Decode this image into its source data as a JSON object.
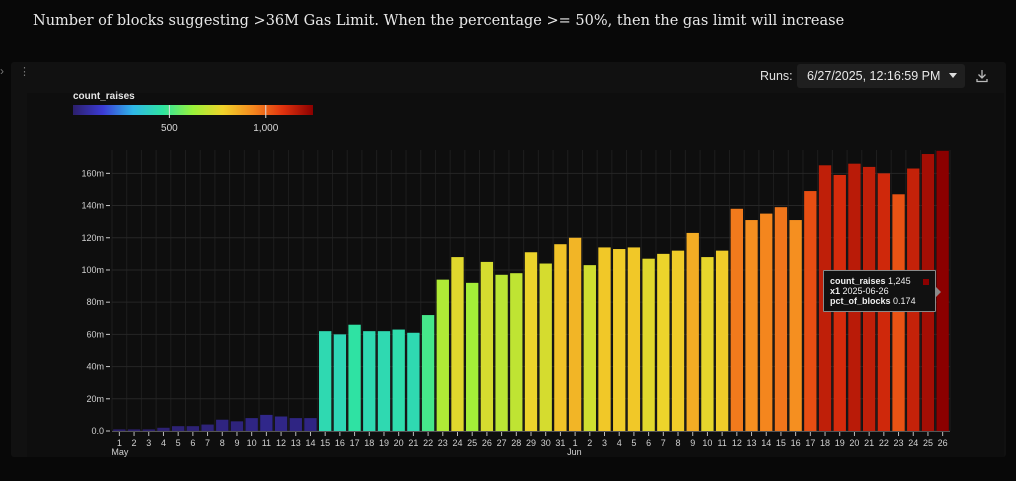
{
  "page": {
    "title": "Number of blocks suggesting >36M Gas Limit. When the percentage >= 50%, then the gas limit will increase"
  },
  "toolbar": {
    "runs_label": "Runs:",
    "run_selected": "6/27/2025, 12:16:59 PM",
    "download_icon": "download-icon",
    "drag_icon": "drag-handle-icon"
  },
  "legend": {
    "title": "count_raises",
    "ticks": [
      {
        "value": 500,
        "label": "500"
      },
      {
        "value": 1000,
        "label": "1,000"
      }
    ],
    "range": [
      0,
      1245
    ],
    "colorscale": [
      "#2c1f6b",
      "#3b3bd6",
      "#2fb7e8",
      "#2fe4a0",
      "#9af23a",
      "#f0d22a",
      "#f5891f",
      "#e0320e",
      "#8b0000"
    ]
  },
  "tooltip": {
    "line1_label": "count_raises",
    "line1_value": "1,245",
    "line2_label": "x1",
    "line2_value": "2025-06-26",
    "line3_label": "pct_of_blocks",
    "line3_value": "0.174",
    "swatch_color": "#8b0000"
  },
  "chart_data": {
    "type": "bar",
    "x_start_date": "2025-05-01",
    "categories": [
      "1",
      "2",
      "3",
      "4",
      "5",
      "6",
      "7",
      "8",
      "9",
      "10",
      "11",
      "12",
      "13",
      "14",
      "15",
      "16",
      "17",
      "18",
      "19",
      "20",
      "21",
      "22",
      "23",
      "24",
      "25",
      "26",
      "27",
      "28",
      "29",
      "30",
      "31",
      "1",
      "2",
      "3",
      "4",
      "5",
      "6",
      "7",
      "8",
      "9",
      "10",
      "11",
      "12",
      "13",
      "14",
      "15",
      "16",
      "17",
      "18",
      "19",
      "20",
      "21",
      "22",
      "23",
      "24",
      "25",
      "26"
    ],
    "month_labels": [
      {
        "index": 0,
        "label": "May"
      },
      {
        "index": 31,
        "label": "Jun"
      }
    ],
    "values": [
      0.001,
      0.001,
      0.001,
      0.002,
      0.003,
      0.003,
      0.004,
      0.007,
      0.006,
      0.008,
      0.01,
      0.009,
      0.008,
      0.008,
      0.062,
      0.06,
      0.066,
      0.062,
      0.062,
      0.063,
      0.061,
      0.072,
      0.094,
      0.108,
      0.092,
      0.105,
      0.097,
      0.098,
      0.111,
      0.104,
      0.116,
      0.12,
      0.103,
      0.114,
      0.113,
      0.114,
      0.107,
      0.11,
      0.112,
      0.123,
      0.108,
      0.112,
      0.138,
      0.131,
      0.135,
      0.139,
      0.131,
      0.149,
      0.165,
      0.159,
      0.166,
      0.164,
      0.16,
      0.147,
      0.163,
      0.172,
      0.174
    ],
    "color_values": [
      5,
      5,
      5,
      10,
      15,
      15,
      20,
      30,
      25,
      35,
      45,
      40,
      35,
      35,
      430,
      420,
      460,
      430,
      430,
      440,
      430,
      500,
      660,
      750,
      640,
      730,
      680,
      690,
      770,
      730,
      810,
      840,
      720,
      800,
      790,
      800,
      750,
      770,
      790,
      860,
      760,
      790,
      960,
      920,
      940,
      970,
      920,
      1040,
      1150,
      1110,
      1160,
      1150,
      1120,
      1030,
      1140,
      1200,
      1245
    ],
    "y_ticks": [
      {
        "value": 0,
        "label": "0.0"
      },
      {
        "value": 0.02,
        "label": "20m"
      },
      {
        "value": 0.04,
        "label": "40m"
      },
      {
        "value": 0.06,
        "label": "60m"
      },
      {
        "value": 0.08,
        "label": "80m"
      },
      {
        "value": 0.1,
        "label": "100m"
      },
      {
        "value": 0.12,
        "label": "120m"
      },
      {
        "value": 0.14,
        "label": "140m"
      },
      {
        "value": 0.16,
        "label": "160m"
      }
    ],
    "ylim": [
      0,
      0.174
    ],
    "grid": true,
    "legend": "top-left colorbar"
  }
}
